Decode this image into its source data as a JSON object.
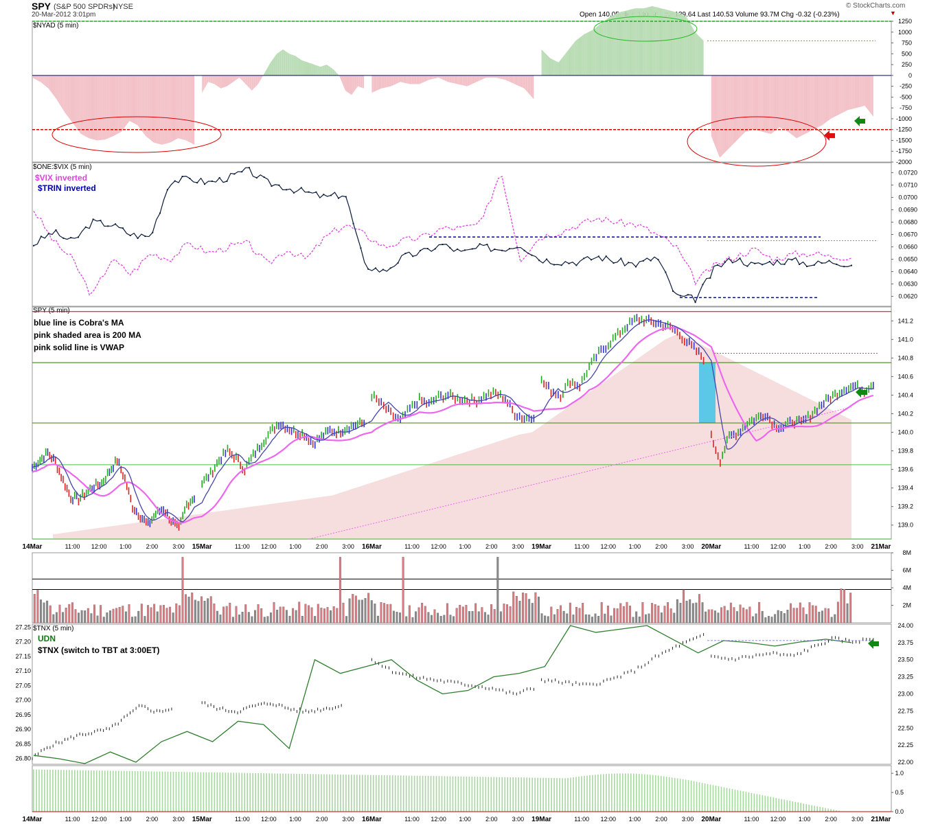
{
  "header": {
    "symbol": "SPY",
    "name": "(S&P 500 SPDRs)",
    "exchange": "NYSE",
    "datetime": "20-Mar-2012 3:01pm",
    "quote": "Open 140.05  High 140.56  Low 139.64  Last 140.53  Volume 93.7M  Chg -0.32 (-0.23%)",
    "credit": "© StockCharts.com"
  },
  "colors": {
    "up": "#22aa22",
    "down": "#dd2222",
    "neutral": "#3333cc",
    "vix": "#e040e0",
    "trin": "#0000aa",
    "cobra": "#4444aa",
    "vwap": "#ee66ee",
    "ma200_fill": "#f7dede",
    "nyad_pos": "#b9dcb5",
    "nyad_neg": "#f2c2c8",
    "highlight": "#5bc8e8",
    "tnx_line": "#2e7d2e"
  },
  "chart_data": [
    {
      "id": "nyad",
      "type": "area",
      "title": "$NYAD (5 min)",
      "ylim": [
        -2000,
        1250
      ],
      "y_ticks": [
        "1250",
        "1000",
        "750",
        "500",
        "250",
        "0",
        "-250",
        "-500",
        "-750",
        "-1000",
        "-1250",
        "-1500",
        "-1750",
        "-2000"
      ],
      "reference_lines": [
        1250,
        0,
        -1250
      ],
      "days": [
        {
          "label": "14Mar",
          "values": [
            -50,
            -150,
            -300,
            -550,
            -850,
            -1100,
            -1350,
            -1450,
            -1500,
            -1480,
            -1400,
            -1300,
            -1050,
            -1150,
            -1400,
            -1550,
            -1600,
            -1550,
            -1450,
            -1500,
            -1600
          ]
        },
        {
          "label": "15Mar",
          "values": [
            -400,
            -150,
            -200,
            -300,
            -250,
            -150,
            -50,
            -200,
            -350,
            -200,
            50,
            300,
            500,
            600,
            500,
            450,
            350,
            300,
            250,
            200,
            250,
            150,
            0,
            -350,
            -450,
            -250,
            -300
          ]
        },
        {
          "label": "16Mar",
          "values": [
            -400,
            -300,
            -250,
            -150,
            -200,
            -200,
            -100,
            -50,
            -150,
            -200,
            -250,
            -150,
            -50,
            -50,
            -100,
            -200,
            -300,
            -550
          ]
        },
        {
          "label": "19Mar",
          "values": [
            600,
            400,
            300,
            550,
            800,
            950,
            1050,
            1200,
            1350,
            1450,
            1500,
            1550,
            1550,
            1600,
            1550,
            1500,
            1450,
            1350,
            1000,
            800
          ]
        },
        {
          "label": "20Mar",
          "values": [
            -1400,
            -1900,
            -1700,
            -1500,
            -1300,
            -1250,
            -1300,
            -1350,
            -1200,
            -1300,
            -1450,
            -1350,
            -1250,
            -1150,
            -1000,
            -900,
            -800,
            -750,
            -700,
            -950
          ]
        }
      ],
      "annotations": [
        "green ellipse at NYAD high",
        "red ellipses at NYAD lows",
        "green arrow",
        "red arrow"
      ]
    },
    {
      "id": "one-vix",
      "type": "line",
      "title": "$ONE:$VIX (5 min)",
      "legend": [
        "$VIX inverted",
        "$TRIN inverted"
      ],
      "ylim": [
        0.0612,
        0.0728
      ],
      "y_ticks": [
        "0.0720",
        "0.0710",
        "0.0700",
        "0.0690",
        "0.0680",
        "0.0670",
        "0.0660",
        "0.0650",
        "0.0640",
        "0.0630",
        "0.0620"
      ],
      "trin_inverted": [
        0.0662,
        0.0672,
        0.0664,
        0.068,
        0.0678,
        0.067,
        0.0668,
        0.0713,
        0.0715,
        0.0712,
        0.0716,
        0.0722,
        0.0712,
        0.0708,
        0.0704,
        0.07,
        0.0703,
        0.0645,
        0.064,
        0.0652,
        0.0656,
        0.0662,
        0.0655,
        0.066,
        0.0658,
        0.0662,
        0.065,
        0.0648,
        0.0648,
        0.0652,
        0.0648,
        0.0646,
        0.0652,
        0.062,
        0.0618,
        0.0643,
        0.0651,
        0.0645,
        0.0648,
        0.0649,
        0.0646,
        0.0648,
        0.0646
      ],
      "vix_inverted": [
        0.069,
        0.0665,
        0.065,
        0.062,
        0.065,
        0.0638,
        0.0655,
        0.065,
        0.0663,
        0.0655,
        0.066,
        0.0663,
        0.0646,
        0.0658,
        0.065,
        0.0668,
        0.0678,
        0.067,
        0.066,
        0.0665,
        0.0668,
        0.0675,
        0.0675,
        0.0679,
        0.0722,
        0.065,
        0.0668,
        0.0672,
        0.0678,
        0.0683,
        0.068,
        0.0678,
        0.067,
        0.066,
        0.0632,
        0.0645,
        0.0652,
        0.0658,
        0.065,
        0.0654,
        0.0655,
        0.0652,
        0.0652
      ],
      "levels": [
        0.0668,
        0.0619
      ]
    },
    {
      "id": "spy",
      "type": "bar",
      "title": "SPY (5 min)",
      "notes": [
        "blue line is Cobra's MA",
        "pink shaded area is 200 MA",
        "pink solid line is VWAP"
      ],
      "ylim": [
        138.85,
        141.35
      ],
      "y_ticks": [
        "141.2",
        "141.0",
        "140.8",
        "140.6",
        "140.4",
        "140.2",
        "140.0",
        "139.8",
        "139.6",
        "139.4",
        "139.2",
        "139.0"
      ],
      "red_levels": [
        141.3,
        140.75,
        140.1
      ],
      "green_levels": [
        140.75,
        140.1,
        139.65,
        138.85
      ],
      "days": [
        {
          "label": "14Mar",
          "closes": [
            139.62,
            139.7,
            139.78,
            139.68,
            139.48,
            139.3,
            139.28,
            139.35,
            139.42,
            139.45,
            139.58,
            139.7,
            139.5,
            139.2,
            139.1,
            139.0,
            139.12,
            139.18,
            139.05,
            138.95,
            139.22,
            139.3
          ]
        },
        {
          "label": "15Mar",
          "closes": [
            139.45,
            139.55,
            139.7,
            139.8,
            139.72,
            139.6,
            139.75,
            139.88,
            140.0,
            140.1,
            140.05,
            140.0,
            139.98,
            139.88,
            139.95,
            140.02,
            140.0,
            140.05,
            140.08,
            140.1
          ]
        },
        {
          "label": "16Mar",
          "closes": [
            140.4,
            140.3,
            140.2,
            140.12,
            140.25,
            140.35,
            140.3,
            140.38,
            140.4,
            140.36,
            140.35,
            140.34,
            140.4,
            140.42,
            140.36,
            140.2,
            140.15,
            140.18
          ]
        },
        {
          "label": "19Mar",
          "closes": [
            140.55,
            140.45,
            140.4,
            140.55,
            140.5,
            140.7,
            140.85,
            140.95,
            141.05,
            141.15,
            141.22,
            141.2,
            141.18,
            141.15,
            141.1,
            141.0,
            140.9,
            140.8
          ]
        },
        {
          "label": "20Mar",
          "closes": [
            139.95,
            139.7,
            139.95,
            140.0,
            140.1,
            140.15,
            140.2,
            140.08,
            140.05,
            140.12,
            140.1,
            140.18,
            140.28,
            140.36,
            140.42,
            140.48,
            140.5,
            140.45,
            140.53
          ]
        }
      ],
      "highlight_band": {
        "from": 140.1,
        "to": 140.75
      }
    },
    {
      "id": "volume",
      "type": "bar",
      "ylim": [
        0,
        8
      ],
      "y_ticks": [
        "8M",
        "6M",
        "4M",
        "2M"
      ],
      "levels": [
        5,
        3.8
      ]
    },
    {
      "id": "tnx",
      "type": "line",
      "title": "$TNX (5 min)",
      "legend": [
        "UDN",
        "$TNX (switch to TBT at 3:00ET)"
      ],
      "left_ylim": [
        26.78,
        27.26
      ],
      "left_ticks": [
        "27.25",
        "27.20",
        "27.15",
        "27.10",
        "27.05",
        "27.00",
        "26.95",
        "26.90",
        "26.85",
        "26.80"
      ],
      "right_ylim": [
        21.97,
        24.02
      ],
      "right_ticks": [
        "24.00",
        "23.75",
        "23.50",
        "23.25",
        "23.00",
        "22.75",
        "22.50",
        "22.25",
        "22.00"
      ],
      "tnx_days": [
        {
          "label": "14Mar",
          "values": [
            26.8,
            26.84,
            26.86,
            26.88,
            26.89,
            26.9,
            26.94,
            26.98,
            26.96,
            26.97
          ]
        },
        {
          "label": "15Mar",
          "values": [
            26.99,
            26.97,
            26.96,
            26.98,
            26.99,
            26.97,
            26.96,
            26.97,
            26.98
          ]
        },
        {
          "label": "16Mar",
          "values": [
            27.14,
            27.1,
            27.08,
            27.07,
            27.06,
            27.05,
            27.04,
            27.02,
            27.04
          ]
        },
        {
          "label": "19Mar",
          "values": [
            27.07,
            27.06,
            27.05,
            27.07,
            27.1,
            27.15,
            27.19,
            27.22
          ]
        },
        {
          "label": "20Mar",
          "values": [
            27.15,
            27.14,
            27.15,
            27.16,
            27.15,
            27.18,
            27.21,
            27.2,
            27.21
          ]
        }
      ],
      "udn": [
        22.1,
        22.05,
        21.98,
        22.15,
        22.0,
        22.3,
        22.45,
        22.3,
        22.6,
        22.55,
        22.2,
        23.5,
        23.3,
        23.4,
        23.5,
        23.2,
        23.0,
        23.05,
        23.25,
        23.3,
        23.4,
        24.0,
        23.9,
        23.95,
        24.0,
        23.8,
        23.6,
        23.78,
        23.75,
        23.7,
        23.76,
        23.8,
        23.75
      ]
    },
    {
      "id": "udn-hist",
      "type": "area",
      "ylim": [
        0,
        1.2
      ],
      "y_ticks": [
        "1.0",
        "0.5",
        "0.0"
      ]
    }
  ],
  "x_axis": {
    "top": [
      "14Mar",
      "11:00",
      "12:00",
      "1:00",
      "2:00",
      "3:00",
      "15Mar",
      "11:00",
      "12:00",
      "1:00",
      "2:00",
      "3:00",
      "16Mar",
      "11:00",
      "12:00",
      "1:00",
      "2:00",
      "3:00",
      "19Mar",
      "11:00",
      "12:00",
      "1:00",
      "2:00",
      "3:00",
      "20Mar",
      "11:00",
      "12:00",
      "1:00",
      "2:00",
      "3:00",
      "21Mar"
    ],
    "bottom": [
      "14Mar",
      "11:00",
      "12:00",
      "1:00",
      "2:00",
      "3:00",
      "15Mar",
      "11:00",
      "12:00",
      "1:00",
      "2:00",
      "3:00",
      "16Mar",
      "11:00",
      "12:00",
      "1:00",
      "2:00",
      "3:00",
      "19Mar",
      "11:00",
      "12:00",
      "1:00",
      "2:00",
      "3:00",
      "20Mar",
      "11:00",
      "12:00",
      "1:00",
      "2:00",
      "3:00",
      "21Mar"
    ]
  }
}
